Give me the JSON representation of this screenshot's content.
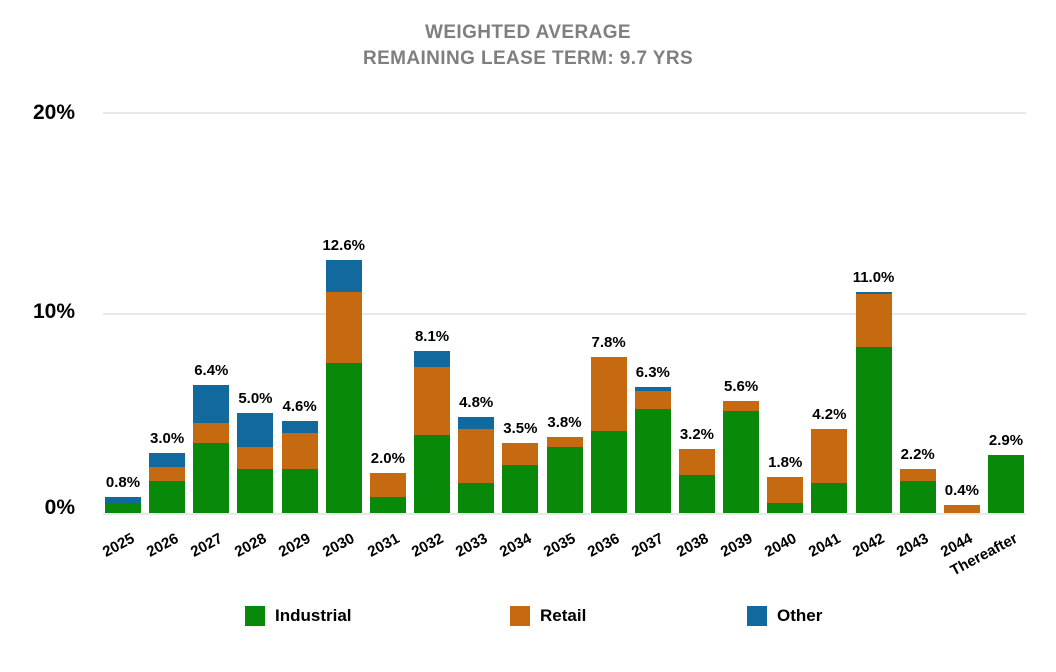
{
  "title": {
    "line1": "WEIGHTED AVERAGE",
    "line2": "REMAINING LEASE TERM: 9.7 YRS"
  },
  "colors": {
    "industrial": "#098909",
    "retail": "#c66a11",
    "other": "#11699e",
    "title_gray": "#7f7f7f",
    "gridline": "#e8e8e8"
  },
  "chart_data": {
    "type": "bar",
    "stacked": true,
    "title": "WEIGHTED AVERAGE REMAINING LEASE TERM: 9.7 YRS",
    "xlabel": "",
    "ylabel": "",
    "ylim": [
      0,
      20
    ],
    "grid": true,
    "legend_position": "bottom",
    "yticks": [
      {
        "label": "0%",
        "value": 0
      },
      {
        "label": "10%",
        "value": 10
      },
      {
        "label": "20%",
        "value": 20
      }
    ],
    "categories": [
      "2025",
      "2026",
      "2027",
      "2028",
      "2029",
      "2030",
      "2031",
      "2032",
      "2033",
      "2034",
      "2035",
      "2036",
      "2037",
      "2038",
      "2039",
      "2040",
      "2041",
      "2042",
      "2043",
      "2044",
      "Thereafter"
    ],
    "series": [
      {
        "name": "Industrial",
        "color": "#098909",
        "values": [
          0.5,
          1.6,
          3.5,
          2.2,
          2.2,
          7.5,
          0.8,
          3.9,
          1.5,
          2.4,
          3.3,
          4.1,
          5.2,
          1.9,
          5.1,
          0.5,
          1.5,
          8.3,
          1.6,
          0.0,
          2.9
        ]
      },
      {
        "name": "Retail",
        "color": "#c66a11",
        "values": [
          0.0,
          0.7,
          1.0,
          1.1,
          1.8,
          3.5,
          1.2,
          3.4,
          2.7,
          1.1,
          0.5,
          3.7,
          0.9,
          1.3,
          0.5,
          1.3,
          2.7,
          2.6,
          0.6,
          0.4,
          0.0
        ]
      },
      {
        "name": "Other",
        "color": "#11699e",
        "values": [
          0.3,
          0.7,
          1.9,
          1.7,
          0.6,
          1.6,
          0.0,
          0.8,
          0.6,
          0.0,
          0.0,
          0.0,
          0.2,
          0.0,
          0.0,
          0.0,
          0.0,
          0.1,
          0.0,
          0.0,
          0.0
        ]
      }
    ],
    "totals": [
      0.8,
      3.0,
      6.4,
      5.0,
      4.6,
      12.6,
      2.0,
      8.1,
      4.8,
      3.5,
      3.8,
      7.8,
      6.3,
      3.2,
      5.6,
      1.8,
      4.2,
      11.0,
      2.2,
      0.4,
      2.9
    ],
    "total_labels": [
      "0.8%",
      "3.0%",
      "6.4%",
      "5.0%",
      "4.6%",
      "12.6%",
      "2.0%",
      "8.1%",
      "4.8%",
      "3.5%",
      "3.8%",
      "7.8%",
      "6.3%",
      "3.2%",
      "5.6%",
      "1.8%",
      "4.2%",
      "11.0%",
      "2.2%",
      "0.4%",
      "2.9%"
    ]
  }
}
